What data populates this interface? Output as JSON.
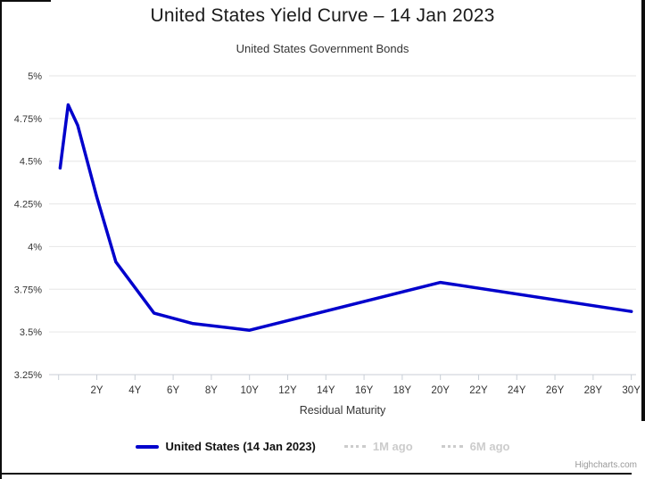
{
  "page": {
    "credit": "Highcharts.com"
  },
  "chart_data": {
    "type": "line",
    "title": "United States Yield Curve – 14 Jan 2023",
    "subtitle": "United States Government Bonds",
    "xlabel": "Residual Maturity",
    "ylabel": "",
    "axes": {
      "xlim": [
        -0.5,
        30.25
      ],
      "ylim": [
        3.25,
        5
      ],
      "grid": true,
      "x_ticks_years": [
        0,
        2,
        4,
        6,
        8,
        10,
        12,
        14,
        16,
        18,
        20,
        22,
        24,
        26,
        28,
        30
      ],
      "x_tick_labels": [
        "",
        "2Y",
        "4Y",
        "6Y",
        "8Y",
        "10Y",
        "12Y",
        "14Y",
        "16Y",
        "18Y",
        "20Y",
        "22Y",
        "24Y",
        "26Y",
        "28Y",
        "30Y"
      ],
      "y_ticks_pct": [
        3.25,
        3.5,
        3.75,
        4,
        4.25,
        4.5,
        4.75,
        5
      ],
      "y_tick_labels": [
        "3.25%",
        "3.5%",
        "3.75%",
        "4%",
        "4.25%",
        "4.5%",
        "4.75%",
        "5%"
      ]
    },
    "series": [
      {
        "name": "United States (14 Jan 2023)",
        "color": "#0000CC",
        "visible": true,
        "line_style": "solid",
        "maturities": [
          "1M",
          "6M",
          "1Y",
          "2Y",
          "3Y",
          "5Y",
          "7Y",
          "10Y",
          "20Y",
          "30Y"
        ],
        "years": [
          0.08,
          0.5,
          1,
          2,
          3,
          5,
          7,
          10,
          20,
          30
        ],
        "yields_pct": [
          4.46,
          4.83,
          4.71,
          4.29,
          3.91,
          3.61,
          3.55,
          3.51,
          3.79,
          3.62
        ]
      },
      {
        "name": "1M ago",
        "color": "#cccccc",
        "visible": false,
        "line_style": "dotted"
      },
      {
        "name": "6M ago",
        "color": "#cccccc",
        "visible": false,
        "line_style": "dotted"
      }
    ],
    "legend_position": "bottom-center",
    "colors": {
      "grid_line": "#e6e6e6",
      "axis_line": "#c8ced6",
      "tick": "#c8ced6",
      "axis_label": "#333333",
      "axis_title": "#333333",
      "hidden_series": "#cccccc"
    }
  }
}
